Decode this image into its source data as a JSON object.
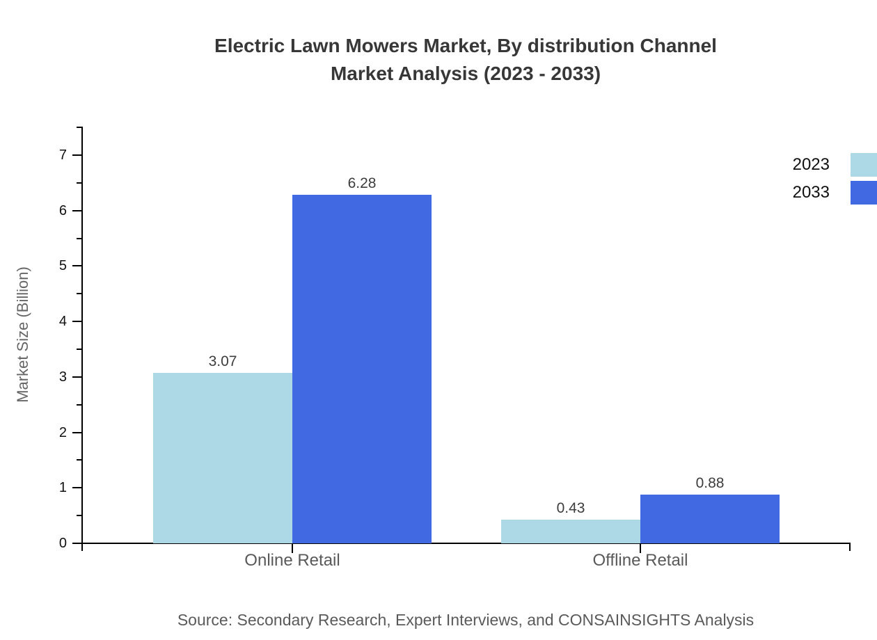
{
  "title": {
    "line1": "Electric Lawn Mowers Market, By distribution Channel",
    "line2": "Market Analysis (2023 - 2033)"
  },
  "y_axis_label": "Market Size (Billion)",
  "source_text": "Source: Secondary Research, Expert Interviews, and CONSAINSIGHTS Analysis",
  "legend": {
    "items": [
      {
        "label": "2023",
        "color": "#ADD8E6"
      },
      {
        "label": "2033",
        "color": "#4169E1"
      }
    ]
  },
  "chart_data": {
    "type": "bar",
    "categories": [
      "Online Retail",
      "Offline Retail"
    ],
    "series": [
      {
        "name": "2023",
        "color": "#ADD8E6",
        "values": [
          3.07,
          0.43
        ]
      },
      {
        "name": "2033",
        "color": "#4169E1",
        "values": [
          6.28,
          0.88
        ]
      }
    ],
    "title": "Electric Lawn Mowers Market, By distribution Channel Market Analysis (2023 - 2033)",
    "xlabel": "",
    "ylabel": "Market Size (Billion)",
    "ylim": [
      0,
      7.5
    ],
    "y_ticks": [
      0,
      1,
      2,
      3,
      4,
      5,
      6,
      7
    ],
    "minor_tick_interval": 0.5,
    "grid": false,
    "legend_position": "top-right",
    "value_label_format": "0.00"
  }
}
